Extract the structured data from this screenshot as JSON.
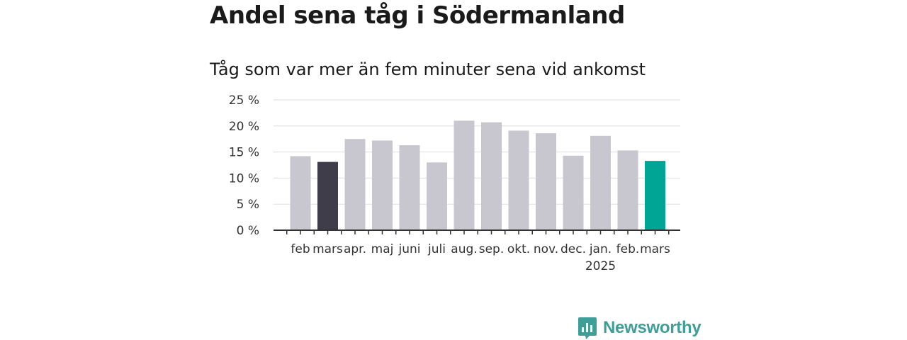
{
  "title": "Andel sena tåg i Södermanland",
  "subtitle": "Tåg som var mer än fem minuter sena vid ankomst",
  "logo": {
    "text": "Newsworthy",
    "icon": "newsworthy-logo-icon",
    "color": "#3d9f97"
  },
  "colors": {
    "default_bar": "#c8c7cf",
    "highlight_bar": "#3f3d4a",
    "current_bar": "#00a596",
    "grid": "#dddddd",
    "axis": "#333333"
  },
  "chart_data": {
    "type": "bar",
    "title": "Andel sena tåg i Södermanland",
    "subtitle": "Tåg som var mer än fem minuter sena vid ankomst",
    "xlabel": "",
    "ylabel": "",
    "ylim": [
      0,
      25
    ],
    "yticks": [
      0,
      5,
      10,
      15,
      20,
      25
    ],
    "ytick_labels": [
      "0 %",
      "5 %",
      "10 %",
      "15 %",
      "20 %",
      "25 %"
    ],
    "grid": true,
    "categories": [
      "feb.",
      "mars",
      "apr.",
      "maj",
      "juni",
      "juli",
      "aug.",
      "sep.",
      "okt.",
      "nov.",
      "dec.",
      "jan.",
      "feb.",
      "mars"
    ],
    "category_labels": [
      "feb",
      "mars",
      "apr.",
      "maj",
      "juni",
      "juli",
      "aug.",
      "sep.",
      "okt.",
      "nov.",
      "dec.",
      "jan.",
      "feb.",
      "mars"
    ],
    "year_label": {
      "index": 11,
      "text": "2025"
    },
    "values": [
      14.2,
      13.1,
      17.5,
      17.2,
      16.3,
      13.0,
      21.0,
      20.7,
      19.1,
      18.6,
      14.3,
      18.1,
      15.3,
      13.3
    ],
    "bar_colors": [
      "#c8c7cf",
      "#3f3d4a",
      "#c8c7cf",
      "#c8c7cf",
      "#c8c7cf",
      "#c8c7cf",
      "#c8c7cf",
      "#c8c7cf",
      "#c8c7cf",
      "#c8c7cf",
      "#c8c7cf",
      "#c8c7cf",
      "#c8c7cf",
      "#00a596"
    ]
  }
}
